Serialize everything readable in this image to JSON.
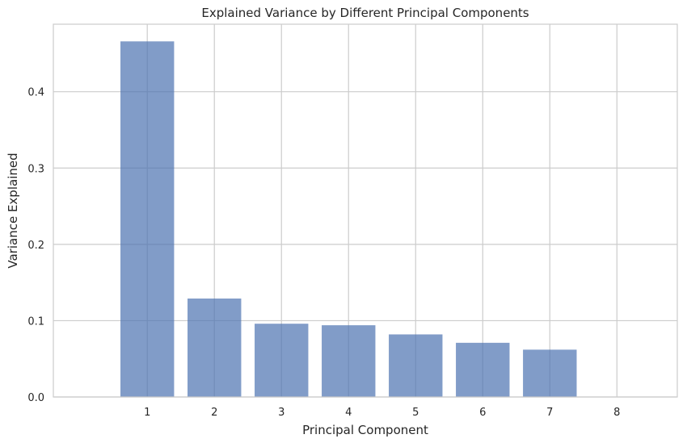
{
  "chart_data": {
    "type": "bar",
    "title": "Explained Variance by Different Principal Components",
    "xlabel": "Principal Component",
    "ylabel": "Variance Explained",
    "categories": [
      "1",
      "2",
      "3",
      "4",
      "5",
      "6",
      "7",
      "8"
    ],
    "values": [
      0.466,
      0.129,
      0.096,
      0.094,
      0.082,
      0.071,
      0.062,
      0.0
    ],
    "ylim": [
      0,
      0.4885
    ],
    "yticks": [
      0.0,
      0.1,
      0.2,
      0.3,
      0.4
    ],
    "ytick_labels": [
      "0.0",
      "0.1",
      "0.2",
      "0.3",
      "0.4"
    ],
    "grid": true,
    "bar_color": "#4c72b0",
    "bar_opacity": 0.7,
    "grid_color": "#cccccc",
    "axes_edge_color": "#cccccc"
  }
}
